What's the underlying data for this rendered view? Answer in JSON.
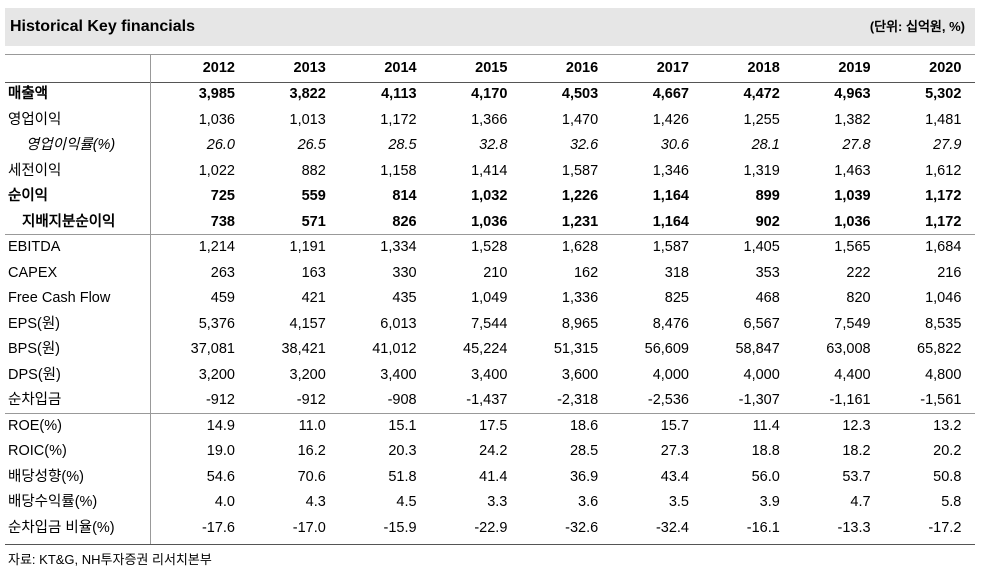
{
  "header": {
    "title": "Historical Key financials",
    "unit": "(단위: 십억원, %)"
  },
  "table": {
    "columns": [
      "2012",
      "2013",
      "2014",
      "2015",
      "2016",
      "2017",
      "2018",
      "2019",
      "2020"
    ],
    "rows": [
      {
        "label": "매출액",
        "values": [
          "3,985",
          "3,822",
          "4,113",
          "4,170",
          "4,503",
          "4,667",
          "4,472",
          "4,963",
          "5,302"
        ]
      },
      {
        "label": "영업이익",
        "values": [
          "1,036",
          "1,013",
          "1,172",
          "1,366",
          "1,470",
          "1,426",
          "1,255",
          "1,382",
          "1,481"
        ]
      },
      {
        "label": "영업이익률(%)",
        "values": [
          "26.0",
          "26.5",
          "28.5",
          "32.8",
          "32.6",
          "30.6",
          "28.1",
          "27.8",
          "27.9"
        ]
      },
      {
        "label": "세전이익",
        "values": [
          "1,022",
          "882",
          "1,158",
          "1,414",
          "1,587",
          "1,346",
          "1,319",
          "1,463",
          "1,612"
        ]
      },
      {
        "label": "순이익",
        "values": [
          "725",
          "559",
          "814",
          "1,032",
          "1,226",
          "1,164",
          "899",
          "1,039",
          "1,172"
        ]
      },
      {
        "label": "지배지분순이익",
        "values": [
          "738",
          "571",
          "826",
          "1,036",
          "1,231",
          "1,164",
          "902",
          "1,036",
          "1,172"
        ]
      },
      {
        "label": "EBITDA",
        "values": [
          "1,214",
          "1,191",
          "1,334",
          "1,528",
          "1,628",
          "1,587",
          "1,405",
          "1,565",
          "1,684"
        ]
      },
      {
        "label": "CAPEX",
        "values": [
          "263",
          "163",
          "330",
          "210",
          "162",
          "318",
          "353",
          "222",
          "216"
        ]
      },
      {
        "label": "Free Cash Flow",
        "values": [
          "459",
          "421",
          "435",
          "1,049",
          "1,336",
          "825",
          "468",
          "820",
          "1,046"
        ]
      },
      {
        "label": "EPS(원)",
        "values": [
          "5,376",
          "4,157",
          "6,013",
          "7,544",
          "8,965",
          "8,476",
          "6,567",
          "7,549",
          "8,535"
        ]
      },
      {
        "label": "BPS(원)",
        "values": [
          "37,081",
          "38,421",
          "41,012",
          "45,224",
          "51,315",
          "56,609",
          "58,847",
          "63,008",
          "65,822"
        ]
      },
      {
        "label": "DPS(원)",
        "values": [
          "3,200",
          "3,200",
          "3,400",
          "3,400",
          "3,600",
          "4,000",
          "4,000",
          "4,400",
          "4,800"
        ]
      },
      {
        "label": "순차입금",
        "values": [
          "-912",
          "-912",
          "-908",
          "-1,437",
          "-2,318",
          "-2,536",
          "-1,307",
          "-1,161",
          "-1,561"
        ]
      },
      {
        "label": "ROE(%)",
        "values": [
          "14.9",
          "11.0",
          "15.1",
          "17.5",
          "18.6",
          "15.7",
          "11.4",
          "12.3",
          "13.2"
        ]
      },
      {
        "label": "ROIC(%)",
        "values": [
          "19.0",
          "16.2",
          "20.3",
          "24.2",
          "28.5",
          "27.3",
          "18.8",
          "18.2",
          "20.2"
        ]
      },
      {
        "label": "배당성향(%)",
        "values": [
          "54.6",
          "70.6",
          "51.8",
          "41.4",
          "36.9",
          "43.4",
          "56.0",
          "53.7",
          "50.8"
        ]
      },
      {
        "label": "배당수익률(%)",
        "values": [
          "4.0",
          "4.3",
          "4.5",
          "3.3",
          "3.6",
          "3.5",
          "3.9",
          "4.7",
          "5.8"
        ]
      },
      {
        "label": "순차입금 비율(%)",
        "values": [
          "-17.6",
          "-17.0",
          "-15.9",
          "-22.9",
          "-32.6",
          "-32.4",
          "-16.1",
          "-13.3",
          "-17.2"
        ]
      }
    ]
  },
  "source": "자료: KT&G, NH투자증권 리서치본부"
}
